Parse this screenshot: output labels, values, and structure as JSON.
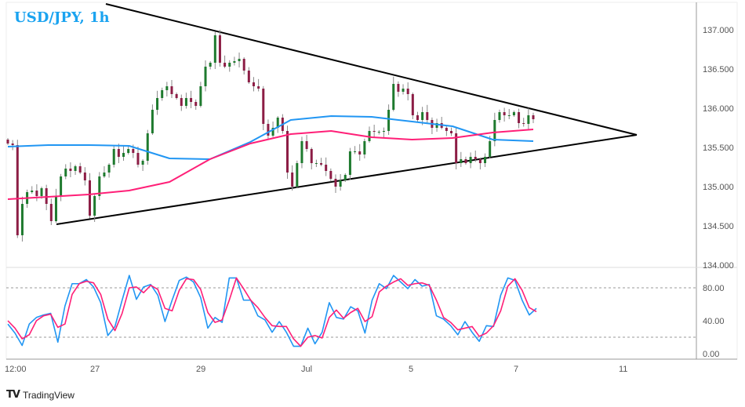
{
  "header": {
    "title": "USD/JPY, 1h"
  },
  "footer": {
    "brand": "TradingView"
  },
  "colors": {
    "title": "#1aa3f0",
    "up": "#1e7a2e",
    "down": "#8c1d45",
    "wick": "#888888",
    "ma_fast": "#2196f3",
    "ma_slow": "#ff1f77",
    "stoch_k": "#2196f3",
    "stoch_d": "#ff1f77",
    "trendline": "#000000"
  },
  "chart_data": [
    {
      "type": "candlestick",
      "symbol": "USD/JPY",
      "interval": "1h",
      "y_ticks": [
        "137.000",
        "136.500",
        "136.000",
        "135.500",
        "135.000",
        "134.500",
        "134.000"
      ],
      "ylim": [
        134.0,
        137.0
      ],
      "x_ticks": [
        "12:00",
        "27",
        "29",
        "Jul",
        "5",
        "7",
        "11"
      ],
      "closes": [
        135.55,
        135.53,
        134.38,
        134.78,
        134.93,
        134.95,
        134.88,
        134.98,
        134.78,
        134.56,
        134.88,
        135.13,
        135.23,
        135.2,
        135.26,
        135.18,
        135.08,
        134.63,
        134.88,
        135.13,
        135.18,
        135.28,
        135.48,
        135.38,
        135.43,
        135.48,
        135.43,
        135.28,
        135.33,
        135.68,
        135.98,
        136.13,
        136.23,
        136.28,
        136.18,
        136.13,
        136.03,
        136.13,
        136.08,
        136.03,
        136.28,
        136.53,
        136.58,
        136.93,
        136.58,
        136.53,
        136.58,
        136.6,
        136.63,
        136.48,
        136.33,
        136.28,
        136.25,
        135.8,
        135.65,
        135.75,
        135.88,
        135.71,
        135.18,
        135.0,
        135.3,
        135.58,
        135.48,
        135.3,
        135.3,
        135.28,
        135.2,
        135.1,
        135.0,
        135.08,
        135.15,
        135.45,
        135.45,
        135.41,
        135.58,
        135.71,
        135.7,
        135.7,
        135.71,
        135.98,
        136.31,
        136.21,
        136.25,
        136.18,
        135.91,
        135.85,
        135.95,
        135.85,
        135.75,
        135.81,
        135.75,
        135.71,
        135.68,
        135.3,
        135.35,
        135.3,
        135.38,
        135.35,
        135.3,
        135.38,
        135.58,
        135.85,
        135.95,
        135.91,
        135.91,
        135.95,
        135.81,
        135.8,
        135.91,
        135.86
      ],
      "moving_averages": [
        {
          "color": "#2196f3",
          "values": [
            135.51,
            135.53,
            135.53,
            135.52,
            135.36,
            135.35,
            135.57,
            135.85,
            135.9,
            135.89,
            135.83,
            135.77,
            135.6,
            135.58
          ]
        },
        {
          "color": "#ff1f77",
          "values": [
            134.84,
            134.87,
            134.9,
            134.95,
            135.06,
            135.35,
            135.55,
            135.67,
            135.71,
            135.63,
            135.6,
            135.62,
            135.69,
            135.73
          ]
        }
      ],
      "trendlines": [
        {
          "name": "upper",
          "start_price": 137.33,
          "end_price": 135.66
        },
        {
          "name": "lower",
          "start_price": 134.52,
          "end_price": 135.66
        }
      ],
      "grid": false
    },
    {
      "type": "line",
      "indicator": "stochastic",
      "y_ticks": [
        "80.00",
        "40.00",
        "0.00"
      ],
      "ylim": [
        0,
        100
      ],
      "levels": [
        80,
        20
      ],
      "series": [
        {
          "color": "#2196f3",
          "values": [
            36,
            25,
            10,
            36,
            44,
            47,
            49,
            14,
            58,
            85,
            85,
            90,
            81,
            62,
            22,
            33,
            65,
            95,
            66,
            81,
            84,
            71,
            39,
            65,
            89,
            93,
            87,
            68,
            31,
            44,
            38,
            92,
            92,
            65,
            65,
            46,
            41,
            26,
            39,
            26,
            9,
            9,
            31,
            12,
            26,
            62,
            44,
            42,
            57,
            52,
            25,
            65,
            85,
            79,
            95,
            87,
            79,
            90,
            82,
            84,
            46,
            42,
            34,
            23,
            39,
            26,
            15,
            34,
            33,
            71,
            92,
            89,
            65,
            47,
            55
          ]
        },
        {
          "color": "#ff1f77",
          "values": [
            40,
            31,
            18,
            23,
            40,
            46,
            48,
            32,
            36,
            72,
            85,
            88,
            86,
            72,
            42,
            28,
            49,
            80,
            81,
            74,
            83,
            78,
            55,
            52,
            77,
            91,
            90,
            78,
            50,
            38,
            41,
            65,
            92,
            79,
            65,
            56,
            44,
            34,
            33,
            33,
            18,
            9,
            20,
            22,
            19,
            44,
            53,
            43,
            50,
            55,
            39,
            45,
            75,
            82,
            87,
            91,
            83,
            85,
            86,
            83,
            65,
            44,
            38,
            29,
            31,
            33,
            21,
            25,
            34,
            52,
            82,
            91,
            77,
            56,
            51
          ]
        }
      ]
    }
  ]
}
